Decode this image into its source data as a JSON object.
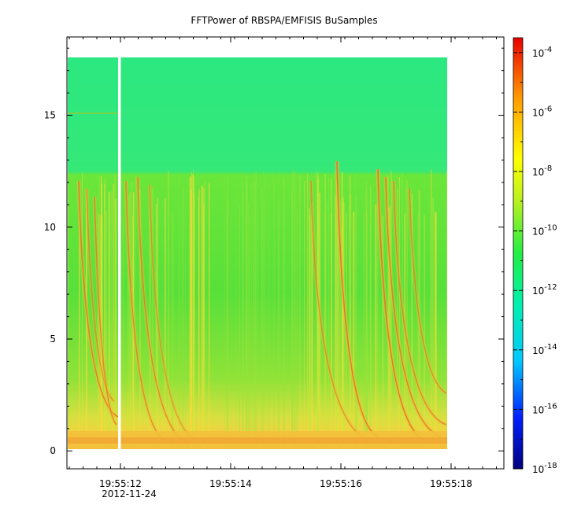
{
  "chart_data": {
    "type": "heatmap",
    "title": "FFTPower of RBSPA/EMFISIS  BuSamples",
    "xlabel": "",
    "ylabel": "",
    "x_ticks": [
      "19:55:12",
      "19:55:14",
      "19:55:16",
      "19:55:18"
    ],
    "x_date_label": "2012-11-24",
    "y_ticks": [
      "0",
      "5",
      "10",
      "15"
    ],
    "ylim": [
      -0.8,
      18.5
    ],
    "data_yrange": [
      0,
      17.5
    ],
    "colorbar": {
      "scale": "log",
      "ticks": [
        {
          "base": "10",
          "exp": "-4"
        },
        {
          "base": "10",
          "exp": "-6"
        },
        {
          "base": "10",
          "exp": "-8"
        },
        {
          "base": "10",
          "exp": "-10"
        },
        {
          "base": "10",
          "exp": "-12"
        },
        {
          "base": "10",
          "exp": "-14"
        },
        {
          "base": "10",
          "exp": "-16"
        },
        {
          "base": "10",
          "exp": "-18"
        }
      ],
      "range_exp": [
        -18,
        -3.5
      ]
    },
    "colors": {
      "low_freq_band": "#f2d24a",
      "mid": "#62e63a",
      "upper": "#2be880",
      "chorus": "#f0c030",
      "chorus_core": "#e67030"
    }
  }
}
